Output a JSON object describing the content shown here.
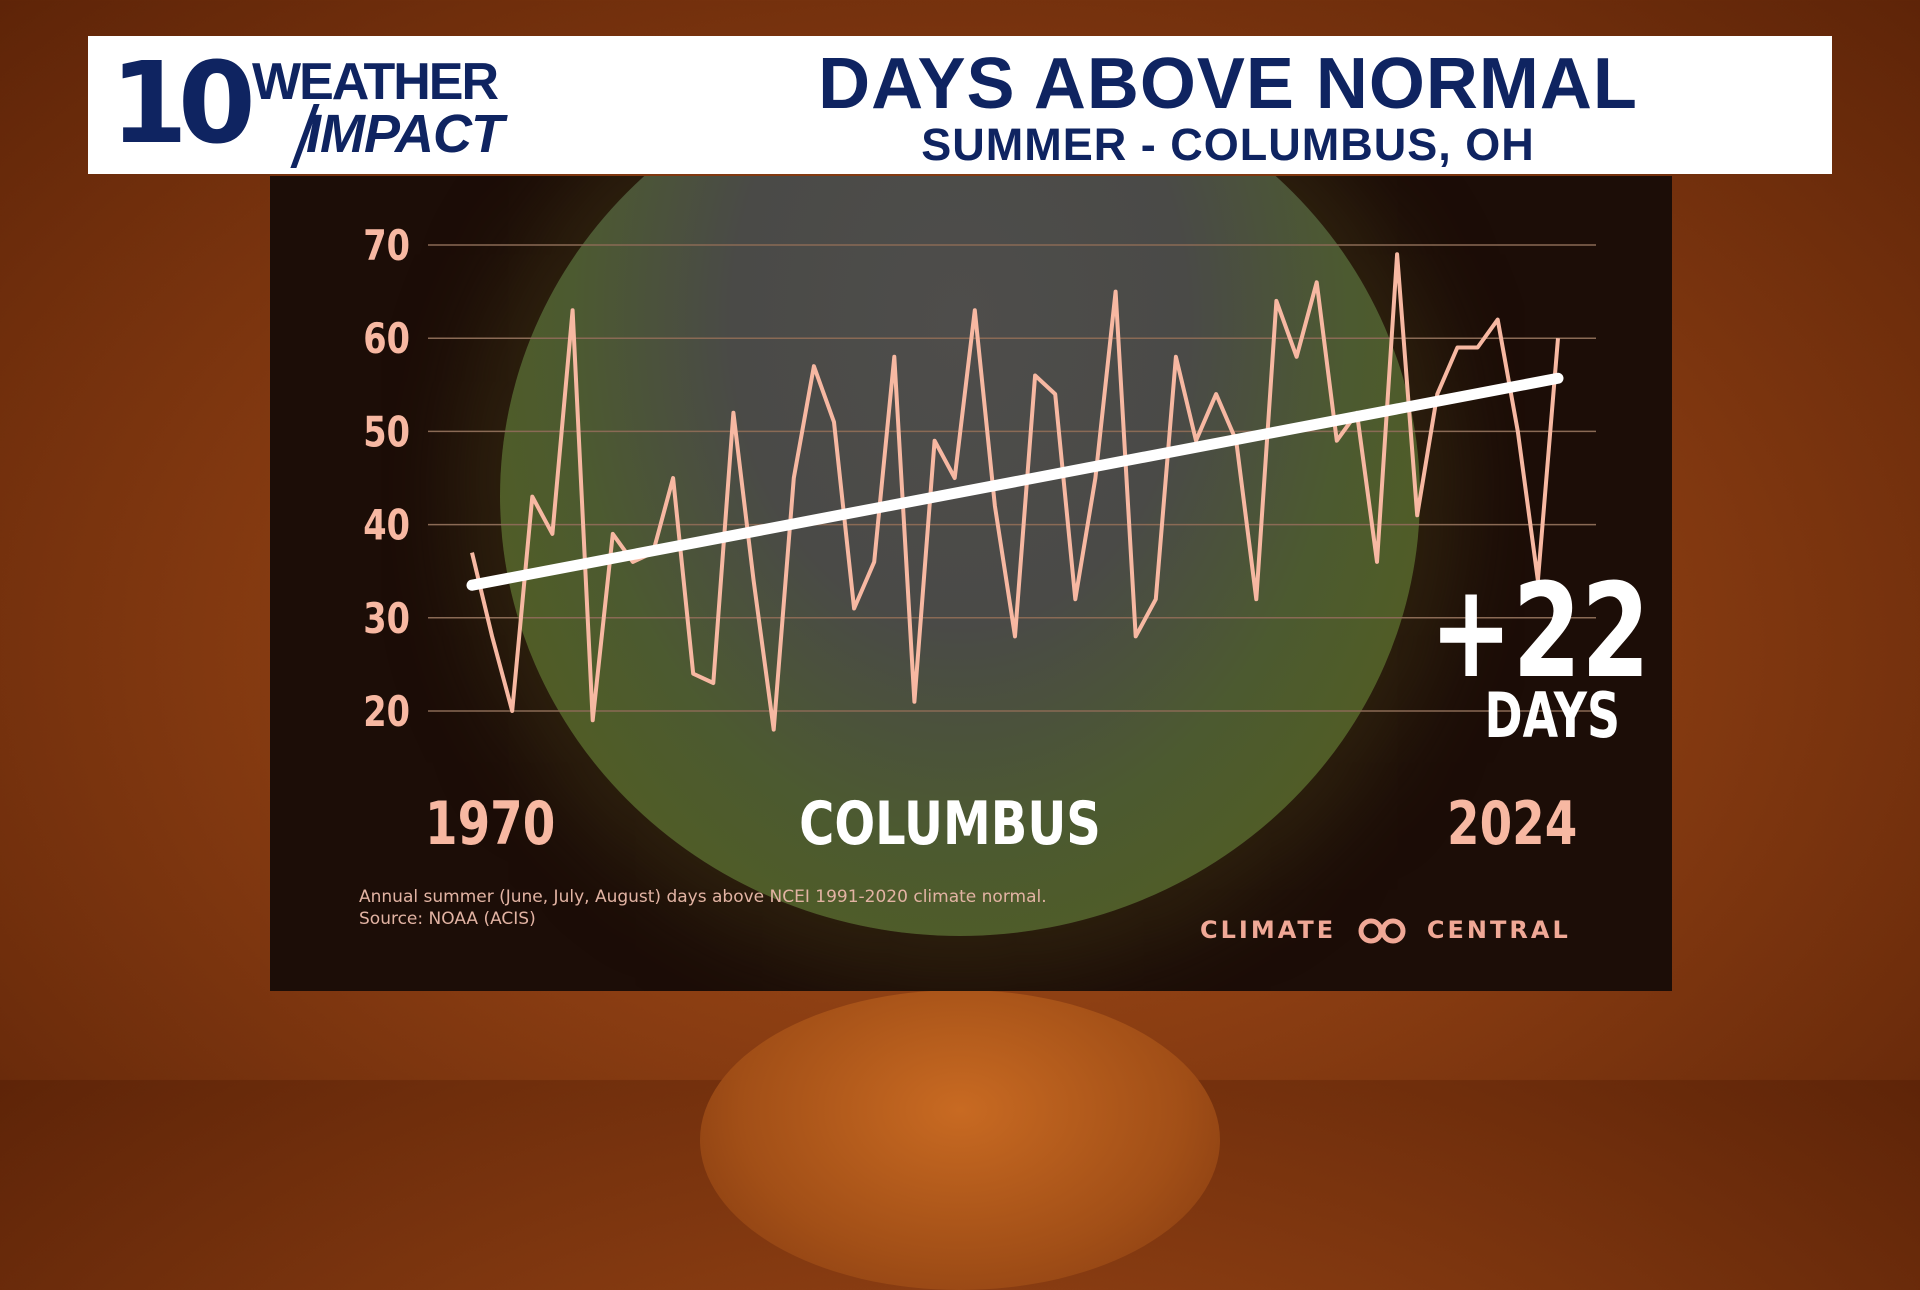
{
  "header": {
    "logo_number": "10",
    "logo_word1": "WEATHER",
    "logo_word2": "IMPACT",
    "title": "DAYS ABOVE NORMAL",
    "subtitle": "SUMMER - COLUMBUS, OH"
  },
  "chart_data": {
    "type": "line",
    "title": "DAYS ABOVE NORMAL",
    "subtitle": "SUMMER - COLUMBUS, OH",
    "location_label": "COLUMBUS",
    "start_label": "1970",
    "end_label": "2024",
    "x": [
      1970,
      1971,
      1972,
      1973,
      1974,
      1975,
      1976,
      1977,
      1978,
      1979,
      1980,
      1981,
      1982,
      1983,
      1984,
      1985,
      1986,
      1987,
      1988,
      1989,
      1990,
      1991,
      1992,
      1993,
      1994,
      1995,
      1996,
      1997,
      1998,
      1999,
      2000,
      2001,
      2002,
      2003,
      2004,
      2005,
      2006,
      2007,
      2008,
      2009,
      2010,
      2011,
      2012,
      2013,
      2014,
      2015,
      2016,
      2017,
      2018,
      2019,
      2020,
      2021,
      2022,
      2023,
      2024
    ],
    "series": [
      {
        "values": [
          37,
          28,
          20,
          43,
          39,
          63,
          19,
          39,
          36,
          37,
          45,
          24,
          23,
          52,
          34,
          18,
          45,
          57,
          51,
          31,
          36,
          58,
          21,
          49,
          45,
          63,
          42,
          28,
          56,
          54,
          32,
          45,
          65,
          28,
          32,
          58,
          49,
          54,
          49,
          32,
          64,
          58,
          66,
          49,
          52,
          36,
          69,
          41,
          54,
          59,
          59,
          62,
          50,
          34,
          60
        ]
      }
    ],
    "trend": {
      "start": 33.5,
      "end": 55.7
    },
    "ylim": [
      15,
      72
    ],
    "yticks": [
      20,
      30,
      40,
      50,
      60,
      70
    ],
    "grid": true,
    "colors": {
      "series": "#f7b8a2",
      "trend": "#ffffff",
      "grid": "#8a6a55"
    }
  },
  "callout": {
    "value": "+22",
    "unit": "DAYS"
  },
  "footnote": {
    "line1": "Annual summer (June, July, August) days above NCEI 1991-2020 climate normal.",
    "line2": "Source: NOAA (ACIS)"
  },
  "brand": {
    "left": "CLIMATE",
    "right": "CENTRAL",
    "icon": "linked-circles-icon"
  }
}
